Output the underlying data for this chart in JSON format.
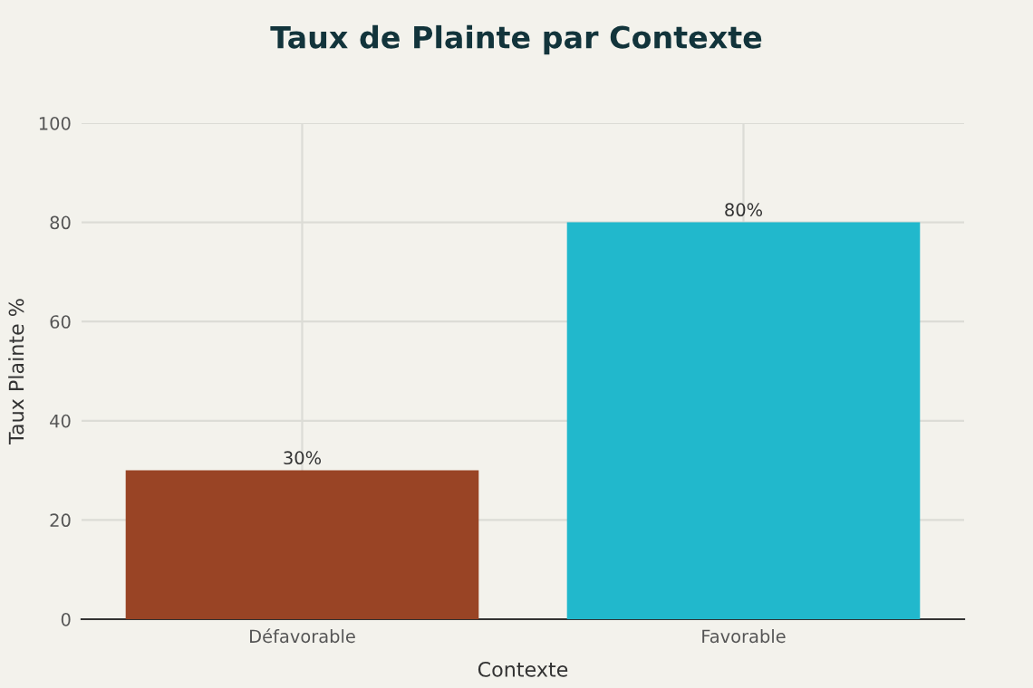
{
  "chart_data": {
    "type": "bar",
    "title": "Taux de Plainte par Contexte",
    "xlabel": "Contexte",
    "ylabel": "Taux Plainte %",
    "categories": [
      "Défavorable",
      "Favorable"
    ],
    "values": [
      30,
      80
    ],
    "colors": [
      "#994425",
      "#21b8cc"
    ],
    "value_labels": [
      "30%",
      "80%"
    ],
    "ylim": [
      0,
      100
    ],
    "yticks": [
      0,
      20,
      40,
      60,
      80,
      100
    ],
    "grid": true
  }
}
